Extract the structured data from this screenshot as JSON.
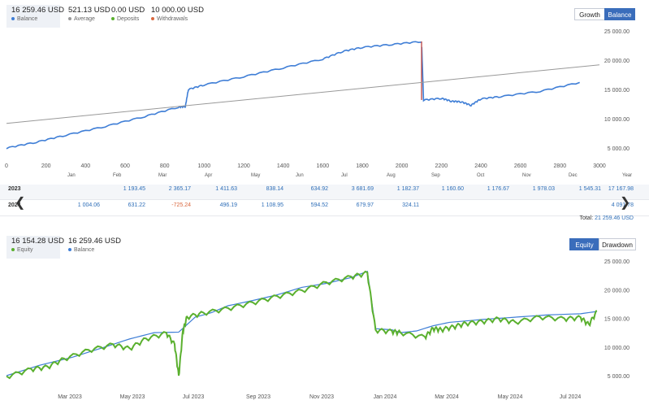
{
  "top_stats": [
    {
      "value": "16 259.46 USD",
      "label": "Balance",
      "color": "#3f7ed6",
      "active": true
    },
    {
      "value": "521.13 USD",
      "label": "Average",
      "color": "#999999",
      "active": false
    },
    {
      "value": "0.00 USD",
      "label": "Deposits",
      "color": "#5ab02e",
      "active": false
    },
    {
      "value": "10 000.00 USD",
      "label": "Withdrawals",
      "color": "#d9673e",
      "active": false
    }
  ],
  "top_toggle": {
    "growth": "Growth",
    "balance": "Balance"
  },
  "bottom_stats": [
    {
      "value": "16 154.28 USD",
      "label": "Equity",
      "color": "#5ab02e",
      "active": true
    },
    {
      "value": "16 259.46 USD",
      "label": "Balance",
      "color": "#3f7ed6",
      "active": false
    }
  ],
  "bottom_toggle": {
    "equity": "Equity",
    "drawdown": "Drawdown"
  },
  "table": {
    "months": [
      "Jan",
      "Feb",
      "Mar",
      "Apr",
      "May",
      "Jun",
      "Jul",
      "Aug",
      "Sep",
      "Oct",
      "Nov",
      "Dec"
    ],
    "year_header": "Year",
    "rows": [
      {
        "year": "2023",
        "values": [
          "",
          "1 193.45",
          "2 365.17",
          "1 411.63",
          "838.14",
          "634.92",
          "3 681.69",
          "1 182.37",
          "1 160.60",
          "1 176.67",
          "1 978.03",
          "1 545.31"
        ],
        "total": "17 167.98"
      },
      {
        "year": "2024",
        "values": [
          "1 004.06",
          "631.22",
          "-725.24",
          "496.19",
          "1 108.95",
          "594.52",
          "679.97",
          "324.11",
          "",
          "",
          "",
          ""
        ],
        "total": "4 091.78"
      }
    ],
    "total_label": "Total:",
    "total_value": "21 259.46 USD"
  },
  "chart_data": [
    {
      "type": "line",
      "title": "",
      "xlabel": "",
      "ylabel": "",
      "xlim": [
        0,
        3000
      ],
      "ylim": [
        3000,
        26000
      ],
      "x_ticks": [
        0,
        200,
        400,
        600,
        800,
        1000,
        1200,
        1400,
        1600,
        1800,
        2000,
        2200,
        2400,
        2600,
        2800,
        3000
      ],
      "x_tick_labels": [
        "0",
        "200",
        "400",
        "600",
        "800",
        "1000",
        "1200",
        "1400",
        "1600",
        "1800",
        "2000",
        "2200",
        "2400",
        "2600",
        "2800",
        "3000"
      ],
      "y_ticks": [
        5000,
        10000,
        15000,
        20000,
        25000
      ],
      "y_tick_labels": [
        "5 000.00",
        "10 000.00",
        "15 000.00",
        "20 000.00",
        "25 000.00"
      ],
      "grid": false,
      "series": [
        {
          "name": "Balance",
          "color": "#3f7ed6",
          "x": [
            0,
            150,
            300,
            500,
            700,
            870,
            905,
            920,
            1000,
            1200,
            1400,
            1600,
            1700,
            1800,
            1950,
            2100,
            2110,
            2200,
            2250,
            2300,
            2350,
            2400,
            2500,
            2700,
            2900
          ],
          "y": [
            5000,
            6000,
            7200,
            8700,
            10400,
            12000,
            12100,
            15000,
            15800,
            17200,
            18700,
            20200,
            21500,
            22200,
            22700,
            23200,
            13200,
            13500,
            13000,
            12900,
            12300,
            13400,
            13800,
            14700,
            16200
          ]
        },
        {
          "name": "Withdrawals",
          "color": "#c0504d",
          "x": [
            2100,
            2100
          ],
          "y": [
            23200,
            13200
          ]
        },
        {
          "name": "Average",
          "color": "#999999",
          "x": [
            0,
            3000
          ],
          "y": [
            9200,
            19200
          ]
        }
      ]
    },
    {
      "type": "line",
      "title": "",
      "xlabel": "",
      "ylabel": "",
      "x_tick_labels": [
        "Mar 2023",
        "May 2023",
        "Jul 2023",
        "Sep 2023",
        "Nov 2023",
        "Jan 2024",
        "Mar 2024",
        "May 2024",
        "Jul 2024"
      ],
      "ylim": [
        3000,
        26000
      ],
      "y_ticks": [
        5000,
        10000,
        15000,
        20000,
        25000
      ],
      "y_tick_labels": [
        "5 000.00",
        "10 000.00",
        "15 000.00",
        "20 000.00",
        "25 000.00"
      ],
      "grid": false,
      "series": [
        {
          "name": "Balance",
          "color": "#3f7ed6",
          "x": [
            0,
            40,
            80,
            120,
            150,
            180,
            210,
            230,
            250,
            270,
            300,
            330,
            360,
            390,
            420,
            440,
            450,
            470,
            480,
            500,
            520,
            540,
            580,
            620,
            660,
            700,
            720
          ],
          "y": [
            5000,
            6800,
            8200,
            10000,
            11400,
            12500,
            12600,
            15200,
            16000,
            17200,
            18100,
            19100,
            20400,
            21100,
            22100,
            23200,
            13200,
            13000,
            12500,
            12800,
            13700,
            14300,
            14800,
            15200,
            15600,
            15800,
            16200
          ]
        },
        {
          "name": "Equity",
          "color": "#5ab02e",
          "x": [
            0,
            30,
            50,
            70,
            100,
            130,
            150,
            170,
            195,
            205,
            210,
            215,
            220,
            240,
            270,
            300,
            330,
            360,
            390,
            420,
            440,
            450,
            470,
            480,
            510,
            520,
            530,
            545,
            560,
            580,
            600,
            620,
            650,
            680,
            700,
            710,
            720
          ],
          "y": [
            4900,
            6200,
            6600,
            8000,
            9500,
            10500,
            9800,
            11500,
            12500,
            10500,
            5000,
            12800,
            15300,
            16000,
            16800,
            17800,
            18900,
            19900,
            21300,
            22300,
            23000,
            13000,
            12800,
            12600,
            11800,
            13300,
            13100,
            13600,
            14200,
            14500,
            15000,
            14400,
            15300,
            15000,
            15200,
            14000,
            16300
          ]
        }
      ]
    }
  ]
}
